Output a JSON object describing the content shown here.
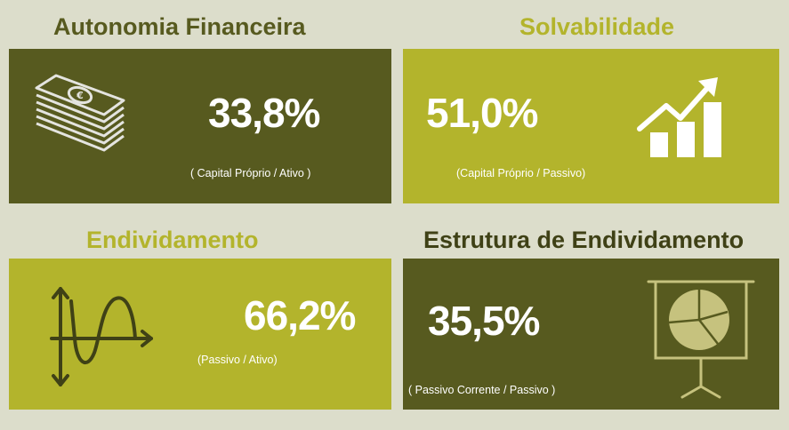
{
  "colors": {
    "background": "#dcddcb",
    "dark_olive": "#575a1f",
    "lime": "#b3b42c",
    "icon_light": "#c6c27e",
    "icon_gray": "#e4e4df"
  },
  "panels": [
    {
      "title": "Autonomia Financeira",
      "value": "33,8%",
      "formula": "( Capital Próprio / Ativo )",
      "icon": "money-stack-icon"
    },
    {
      "title": "Solvabilidade",
      "value": "51,0%",
      "formula": "(Capital Próprio / Passivo)",
      "icon": "growth-chart-icon"
    },
    {
      "title": "Endividamento",
      "value": "66,2%",
      "formula": "(Passivo / Ativo)",
      "icon": "curve-graph-icon"
    },
    {
      "title": "Estrutura de Endividamento",
      "value": "35,5%",
      "formula": "( Passivo Corrente / Passivo )",
      "icon": "pie-chart-board-icon"
    }
  ]
}
